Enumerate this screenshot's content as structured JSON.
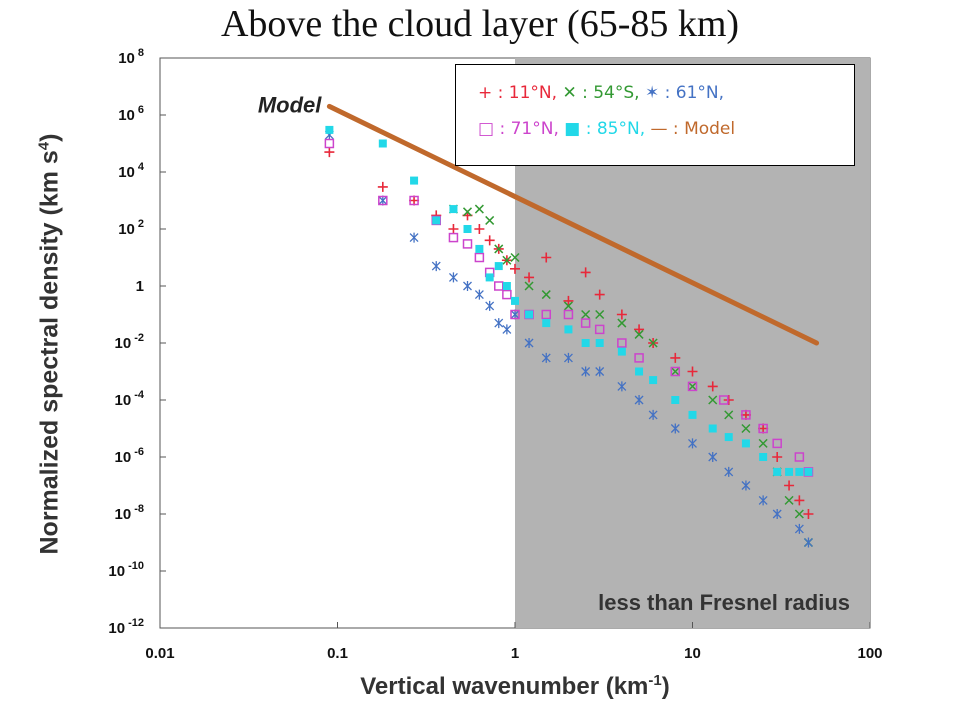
{
  "chart_data": {
    "type": "scatter",
    "title": "Above the cloud layer (65-85 km)",
    "xlabel": "Vertical wavenumber (km",
    "xlabel_sup": "-1",
    "xlabel_end": ")",
    "ylabel": "Normalized spectral density (km s",
    "ylabel_sup": "4",
    "ylabel_end": ")",
    "xscale": "log",
    "yscale": "log",
    "xlim": [
      0.01,
      100
    ],
    "ylim": [
      1e-12,
      100000000.0
    ],
    "x_ticks": [
      {
        "value": 0.01,
        "label": "0.01"
      },
      {
        "value": 0.1,
        "label": "0.1"
      },
      {
        "value": 1,
        "label": "1"
      },
      {
        "value": 10,
        "label": "10"
      },
      {
        "value": 100,
        "label": "100"
      }
    ],
    "y_ticks": [
      {
        "value": 100000000.0,
        "base": "10",
        "exp": "8"
      },
      {
        "value": 1000000.0,
        "base": "10",
        "exp": "6"
      },
      {
        "value": 10000.0,
        "base": "10",
        "exp": "4"
      },
      {
        "value": 100.0,
        "base": "10",
        "exp": "2"
      },
      {
        "value": 1,
        "base": "1",
        "exp": ""
      },
      {
        "value": 0.01,
        "base": "10",
        "exp": "-2"
      },
      {
        "value": 0.0001,
        "base": "10",
        "exp": "-4"
      },
      {
        "value": 1e-06,
        "base": "10",
        "exp": "-6"
      },
      {
        "value": 1e-08,
        "base": "10",
        "exp": "-8"
      },
      {
        "value": 1e-10,
        "base": "10",
        "exp": "-10"
      },
      {
        "value": 1e-12,
        "base": "10",
        "exp": "-12"
      }
    ],
    "grid": false,
    "legend_position": "top-right",
    "shaded_region": {
      "x_from": 1,
      "x_to": 100,
      "label": "less than Fresnel radius",
      "color": "#b3b3b3"
    },
    "model_label": "Model",
    "series": [
      {
        "name": "11°N",
        "legend_prefix": " : 11°N,",
        "marker": "plus",
        "color": "#e8283a",
        "x": [
          0.09,
          0.18,
          0.27,
          0.36,
          0.45,
          0.54,
          0.63,
          0.72,
          0.81,
          0.9,
          1.0,
          1.2,
          1.5,
          2.0,
          2.5,
          3.0,
          4.0,
          5.0,
          6.0,
          8.0,
          10,
          13,
          16,
          20,
          25,
          30,
          35,
          40,
          45
        ],
        "y": [
          50000.0,
          3000.0,
          1000.0,
          300.0,
          100.0,
          300.0,
          100.0,
          40,
          20,
          8,
          4,
          2,
          10,
          0.3,
          3,
          0.5,
          0.1,
          0.03,
          0.01,
          0.003,
          0.001,
          0.0003,
          0.0001,
          3e-05,
          1e-05,
          1e-06,
          1e-07,
          3e-08,
          1e-08
        ]
      },
      {
        "name": "54°S",
        "legend_prefix": " : 54°S,",
        "marker": "x",
        "color": "#339933",
        "x": [
          0.45,
          0.54,
          0.63,
          0.72,
          0.81,
          0.9,
          1.0,
          1.2,
          1.5,
          2.0,
          2.5,
          3.0,
          4.0,
          5.0,
          6.0,
          8.0,
          10,
          13,
          16,
          20,
          25,
          30,
          35,
          40,
          45
        ],
        "y": [
          500.0,
          400.0,
          500.0,
          200.0,
          20,
          8,
          10,
          1,
          0.5,
          0.2,
          0.1,
          0.1,
          0.05,
          0.02,
          0.01,
          0.001,
          0.0003,
          0.0001,
          3e-05,
          1e-05,
          3e-06,
          3e-07,
          3e-08,
          1e-08,
          1e-09
        ]
      },
      {
        "name": "61°N",
        "legend_prefix": " : 61°N,",
        "marker": "asterisk",
        "color": "#4472c4",
        "x": [
          0.09,
          0.18,
          0.27,
          0.36,
          0.45,
          0.54,
          0.63,
          0.72,
          0.81,
          0.9,
          1.0,
          1.2,
          1.5,
          2.0,
          2.5,
          3.0,
          4.0,
          5.0,
          6.0,
          8.0,
          10,
          13,
          16,
          20,
          25,
          30,
          40,
          45
        ],
        "y": [
          200000.0,
          1000.0,
          50,
          5,
          2,
          1,
          0.5,
          0.2,
          0.05,
          0.03,
          0.1,
          0.01,
          0.003,
          0.003,
          0.001,
          0.001,
          0.0003,
          0.0001,
          3e-05,
          1e-05,
          3e-06,
          1e-06,
          3e-07,
          1e-07,
          3e-08,
          1e-08,
          3e-09,
          1e-09
        ]
      },
      {
        "name": "71°N",
        "legend_prefix": " : 71°N,",
        "marker": "square-open",
        "color": "#cc44cc",
        "x": [
          0.09,
          0.18,
          0.27,
          0.36,
          0.45,
          0.54,
          0.63,
          0.72,
          0.81,
          0.9,
          1.0,
          1.2,
          1.5,
          2.0,
          2.5,
          3.0,
          4.0,
          5.0,
          8.0,
          10,
          15,
          20,
          25,
          30,
          40,
          45
        ],
        "y": [
          100000.0,
          1000.0,
          1000.0,
          200.0,
          50,
          30,
          10,
          3,
          1,
          0.5,
          0.1,
          0.1,
          0.1,
          0.1,
          0.05,
          0.03,
          0.01,
          0.003,
          0.001,
          0.0003,
          0.0001,
          3e-05,
          1e-05,
          3e-06,
          1e-06,
          3e-07
        ]
      },
      {
        "name": "85°N",
        "legend_prefix": " : 85°N,",
        "marker": "square-filled",
        "color": "#22d8e8",
        "x": [
          0.09,
          0.18,
          0.27,
          0.36,
          0.45,
          0.54,
          0.63,
          0.72,
          0.81,
          0.9,
          1.0,
          1.2,
          1.5,
          2.0,
          2.5,
          3.0,
          4.0,
          5.0,
          6.0,
          8.0,
          10,
          13,
          16,
          20,
          25,
          30,
          35,
          40,
          45
        ],
        "y": [
          300000.0,
          100000.0,
          5000.0,
          200.0,
          500.0,
          100.0,
          20,
          2,
          5,
          1,
          0.3,
          0.1,
          0.05,
          0.03,
          0.01,
          0.01,
          0.005,
          0.001,
          0.0005,
          0.0001,
          3e-05,
          1e-05,
          5e-06,
          3e-06,
          1e-06,
          3e-07,
          3e-07,
          3e-07,
          3e-07
        ]
      },
      {
        "name": "Model",
        "legend_prefix": " : Model",
        "marker": "line",
        "color": "#c0692c",
        "x": [
          0.09,
          50
        ],
        "y": [
          2000000.0,
          0.01
        ]
      }
    ]
  }
}
